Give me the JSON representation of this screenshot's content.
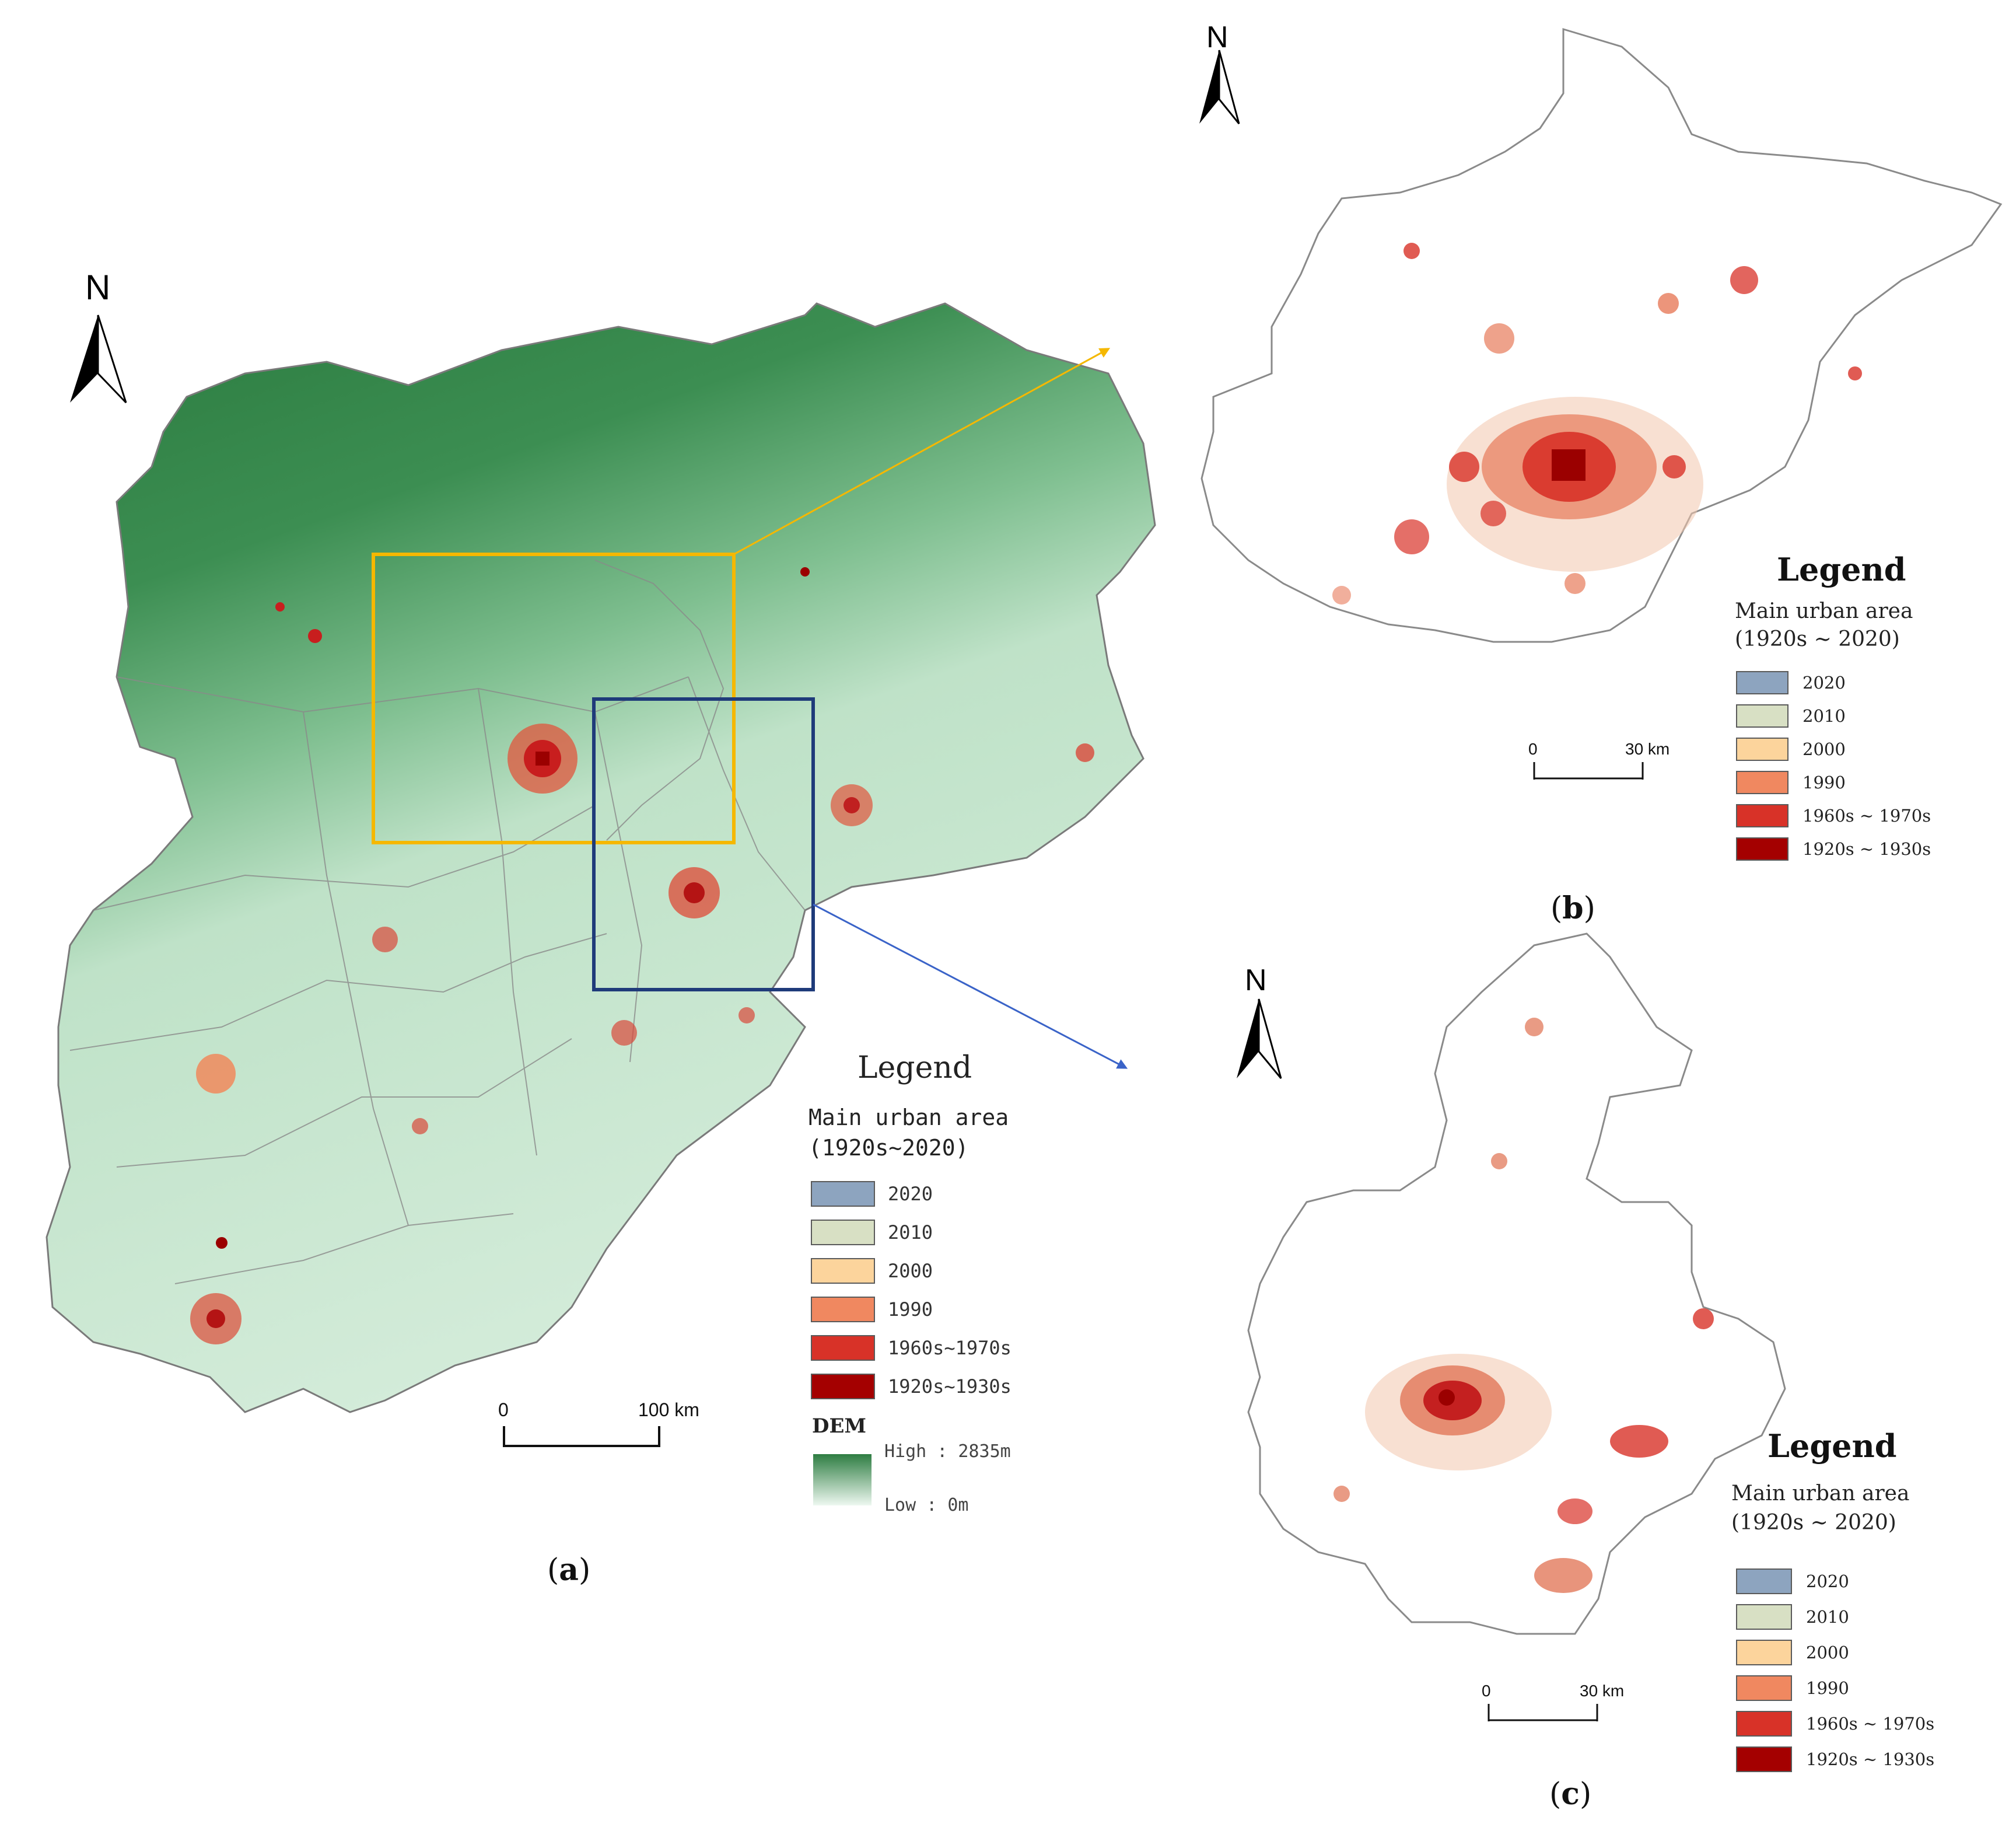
{
  "panels": {
    "a": {
      "label_prefix": "(",
      "label_letter": "a",
      "label_suffix": ")",
      "north": "N",
      "legend": {
        "title": "Legend",
        "subtitle_line1": "Main urban area",
        "subtitle_line2": "(1920s~2020)",
        "items": [
          {
            "label": "2020",
            "color": "#8da4bf"
          },
          {
            "label": "2010",
            "color": "#d8e0c4"
          },
          {
            "label": "2000",
            "color": "#fcd49c"
          },
          {
            "label": "1990",
            "color": "#f08860"
          },
          {
            "label": "1960s~1970s",
            "color": "#d83228"
          },
          {
            "label": "1920s~1930s",
            "color": "#a40000"
          }
        ],
        "dem_title": "DEM",
        "dem_high": "High : 2835m",
        "dem_low": "Low : 0m",
        "dem_high_color": "#2e7d42",
        "dem_low_color": "#e8f5ec"
      },
      "scale": {
        "start": "0",
        "end": "100 km"
      }
    },
    "b": {
      "label_prefix": "(",
      "label_letter": "b",
      "label_suffix": ")",
      "north": "N",
      "legend": {
        "title": "Legend",
        "subtitle_line1": "Main urban area",
        "subtitle_line2": "(1920s ~ 2020)",
        "items": [
          {
            "label": "2020",
            "color": "#8da4bf"
          },
          {
            "label": "2010",
            "color": "#d8e0c4"
          },
          {
            "label": "2000",
            "color": "#fcd49c"
          },
          {
            "label": "1990",
            "color": "#f08860"
          },
          {
            "label": "1960s ~ 1970s",
            "color": "#d83228"
          },
          {
            "label": "1920s ~ 1930s",
            "color": "#a40000"
          }
        ]
      },
      "scale": {
        "start": "0",
        "end": "30 km"
      }
    },
    "c": {
      "label_prefix": "(",
      "label_letter": "c",
      "label_suffix": ")",
      "north": "N",
      "legend": {
        "title": "Legend",
        "subtitle_line1": "Main urban area",
        "subtitle_line2": "(1920s ~ 2020)",
        "items": [
          {
            "label": "2020",
            "color": "#8da4bf"
          },
          {
            "label": "2010",
            "color": "#d8e0c4"
          },
          {
            "label": "2000",
            "color": "#fcd49c"
          },
          {
            "label": "1990",
            "color": "#f08860"
          },
          {
            "label": "1960s ~ 1970s",
            "color": "#d83228"
          },
          {
            "label": "1920s ~ 1930s",
            "color": "#a40000"
          }
        ]
      },
      "scale": {
        "start": "0",
        "end": "30 km"
      }
    }
  },
  "colors": {
    "beijing_box": "#f5b800",
    "tianjin_box": "#1f3b7a",
    "beijing_arrow": "#f5b800",
    "tianjin_arrow": "#3a63c8"
  }
}
